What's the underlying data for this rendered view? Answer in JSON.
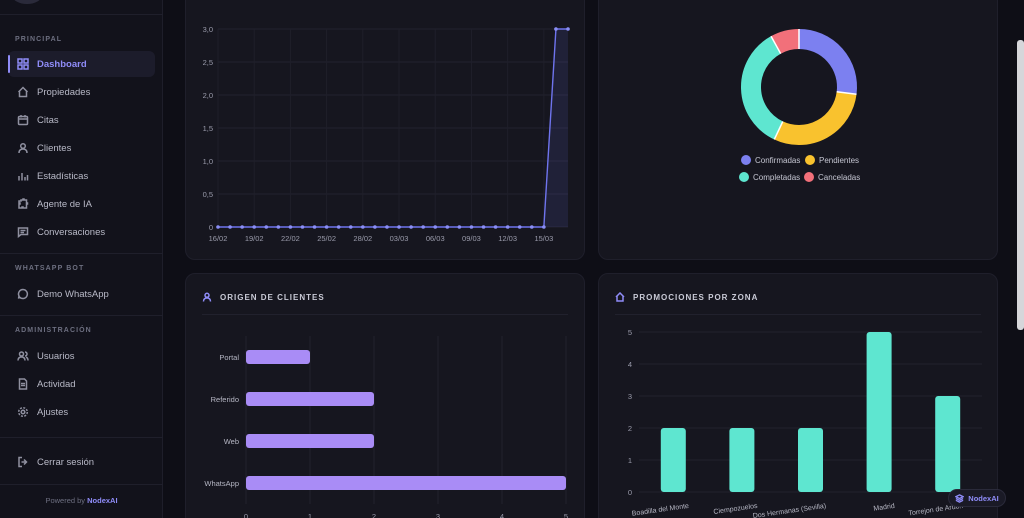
{
  "sidebar": {
    "section_principal": "PRINCIPAL",
    "section_whatsapp": "WHATSAPP BOT",
    "section_admin": "ADMINISTRACIÓN",
    "items": {
      "dashboard": "Dashboard",
      "propiedades": "Propiedades",
      "citas": "Citas",
      "clientes": "Clientes",
      "estadisticas": "Estadísticas",
      "agente": "Agente de IA",
      "conversaciones": "Conversaciones",
      "demo_whatsapp": "Demo WhatsApp",
      "usuarios": "Usuarios",
      "actividad": "Actividad",
      "ajustes": "Ajustes",
      "logout": "Cerrar sesión"
    },
    "powered_prefix": "Powered by",
    "powered_brand": "NodexAI",
    "active_color": "#8f8cf8"
  },
  "donut": {
    "legend": {
      "confirmadas": "Confirmadas",
      "pendientes": "Pendientes",
      "completadas": "Completadas",
      "canceladas": "Canceladas"
    },
    "colors": {
      "confirmadas": "#7c80f0",
      "pendientes": "#f9c22e",
      "completadas": "#5ee6d0",
      "canceladas": "#f2707a"
    }
  },
  "origen": {
    "title": "ORIGEN DE CLIENTES"
  },
  "promociones": {
    "title": "PROMOCIONES POR ZONA"
  },
  "badge": {
    "label": "NodexAI"
  },
  "chart_data": [
    {
      "type": "line",
      "title": "",
      "x": [
        "16/02",
        "17/02",
        "18/02",
        "19/02",
        "20/02",
        "21/02",
        "22/02",
        "23/02",
        "24/02",
        "25/02",
        "26/02",
        "27/02",
        "28/02",
        "01/03",
        "02/03",
        "03/03",
        "04/03",
        "05/03",
        "06/03",
        "07/03",
        "08/03",
        "09/03",
        "10/03",
        "11/03",
        "12/03",
        "13/03",
        "14/03",
        "15/03",
        "16/03",
        "17/03"
      ],
      "tick_labels": [
        "16/02",
        "19/02",
        "22/02",
        "25/02",
        "28/02",
        "03/03",
        "06/03",
        "09/03",
        "12/03",
        "15/03"
      ],
      "series": [
        {
          "name": "Citas",
          "values": [
            0,
            0,
            0,
            0,
            0,
            0,
            0,
            0,
            0,
            0,
            0,
            0,
            0,
            0,
            0,
            0,
            0,
            0,
            0,
            0,
            0,
            0,
            0,
            0,
            0,
            0,
            0,
            0,
            3,
            3
          ]
        }
      ],
      "yticks": [
        "0",
        "0,5",
        "1,0",
        "1,5",
        "2,0",
        "2,5",
        "3,0"
      ],
      "ylim": [
        0,
        3
      ],
      "color": "#6f74ee"
    },
    {
      "type": "pie",
      "categories": [
        "Confirmadas",
        "Pendientes",
        "Completadas",
        "Canceladas"
      ],
      "values": [
        27,
        30,
        35,
        8
      ],
      "donut": true
    },
    {
      "type": "bar",
      "orientation": "horizontal",
      "title": "ORIGEN DE CLIENTES",
      "categories": [
        "Portal",
        "Referido",
        "Web",
        "WhatsApp"
      ],
      "values": [
        1,
        2,
        2,
        5
      ],
      "xticks": [
        "0",
        "1",
        "2",
        "3",
        "4",
        "5"
      ],
      "xlim": [
        0,
        5
      ],
      "color": "#a98cf6"
    },
    {
      "type": "bar",
      "title": "PROMOCIONES POR ZONA",
      "categories": [
        "Boadilla del Monte",
        "Ciempozuelos",
        "Dos Hermanas (Sevilla)",
        "Madrid",
        "Torrejon de Ardoz"
      ],
      "tick_labels": [
        "Boadilla del Monte",
        "Ciempozuelos",
        "Dos Hermanas (Sevilla)",
        "Madrid",
        "Torrejon de Ardo.."
      ],
      "values": [
        2,
        2,
        2,
        5,
        3
      ],
      "yticks": [
        "0",
        "1",
        "2",
        "3",
        "4",
        "5"
      ],
      "ylim": [
        0,
        5
      ],
      "color": "#5ee6d0"
    }
  ]
}
